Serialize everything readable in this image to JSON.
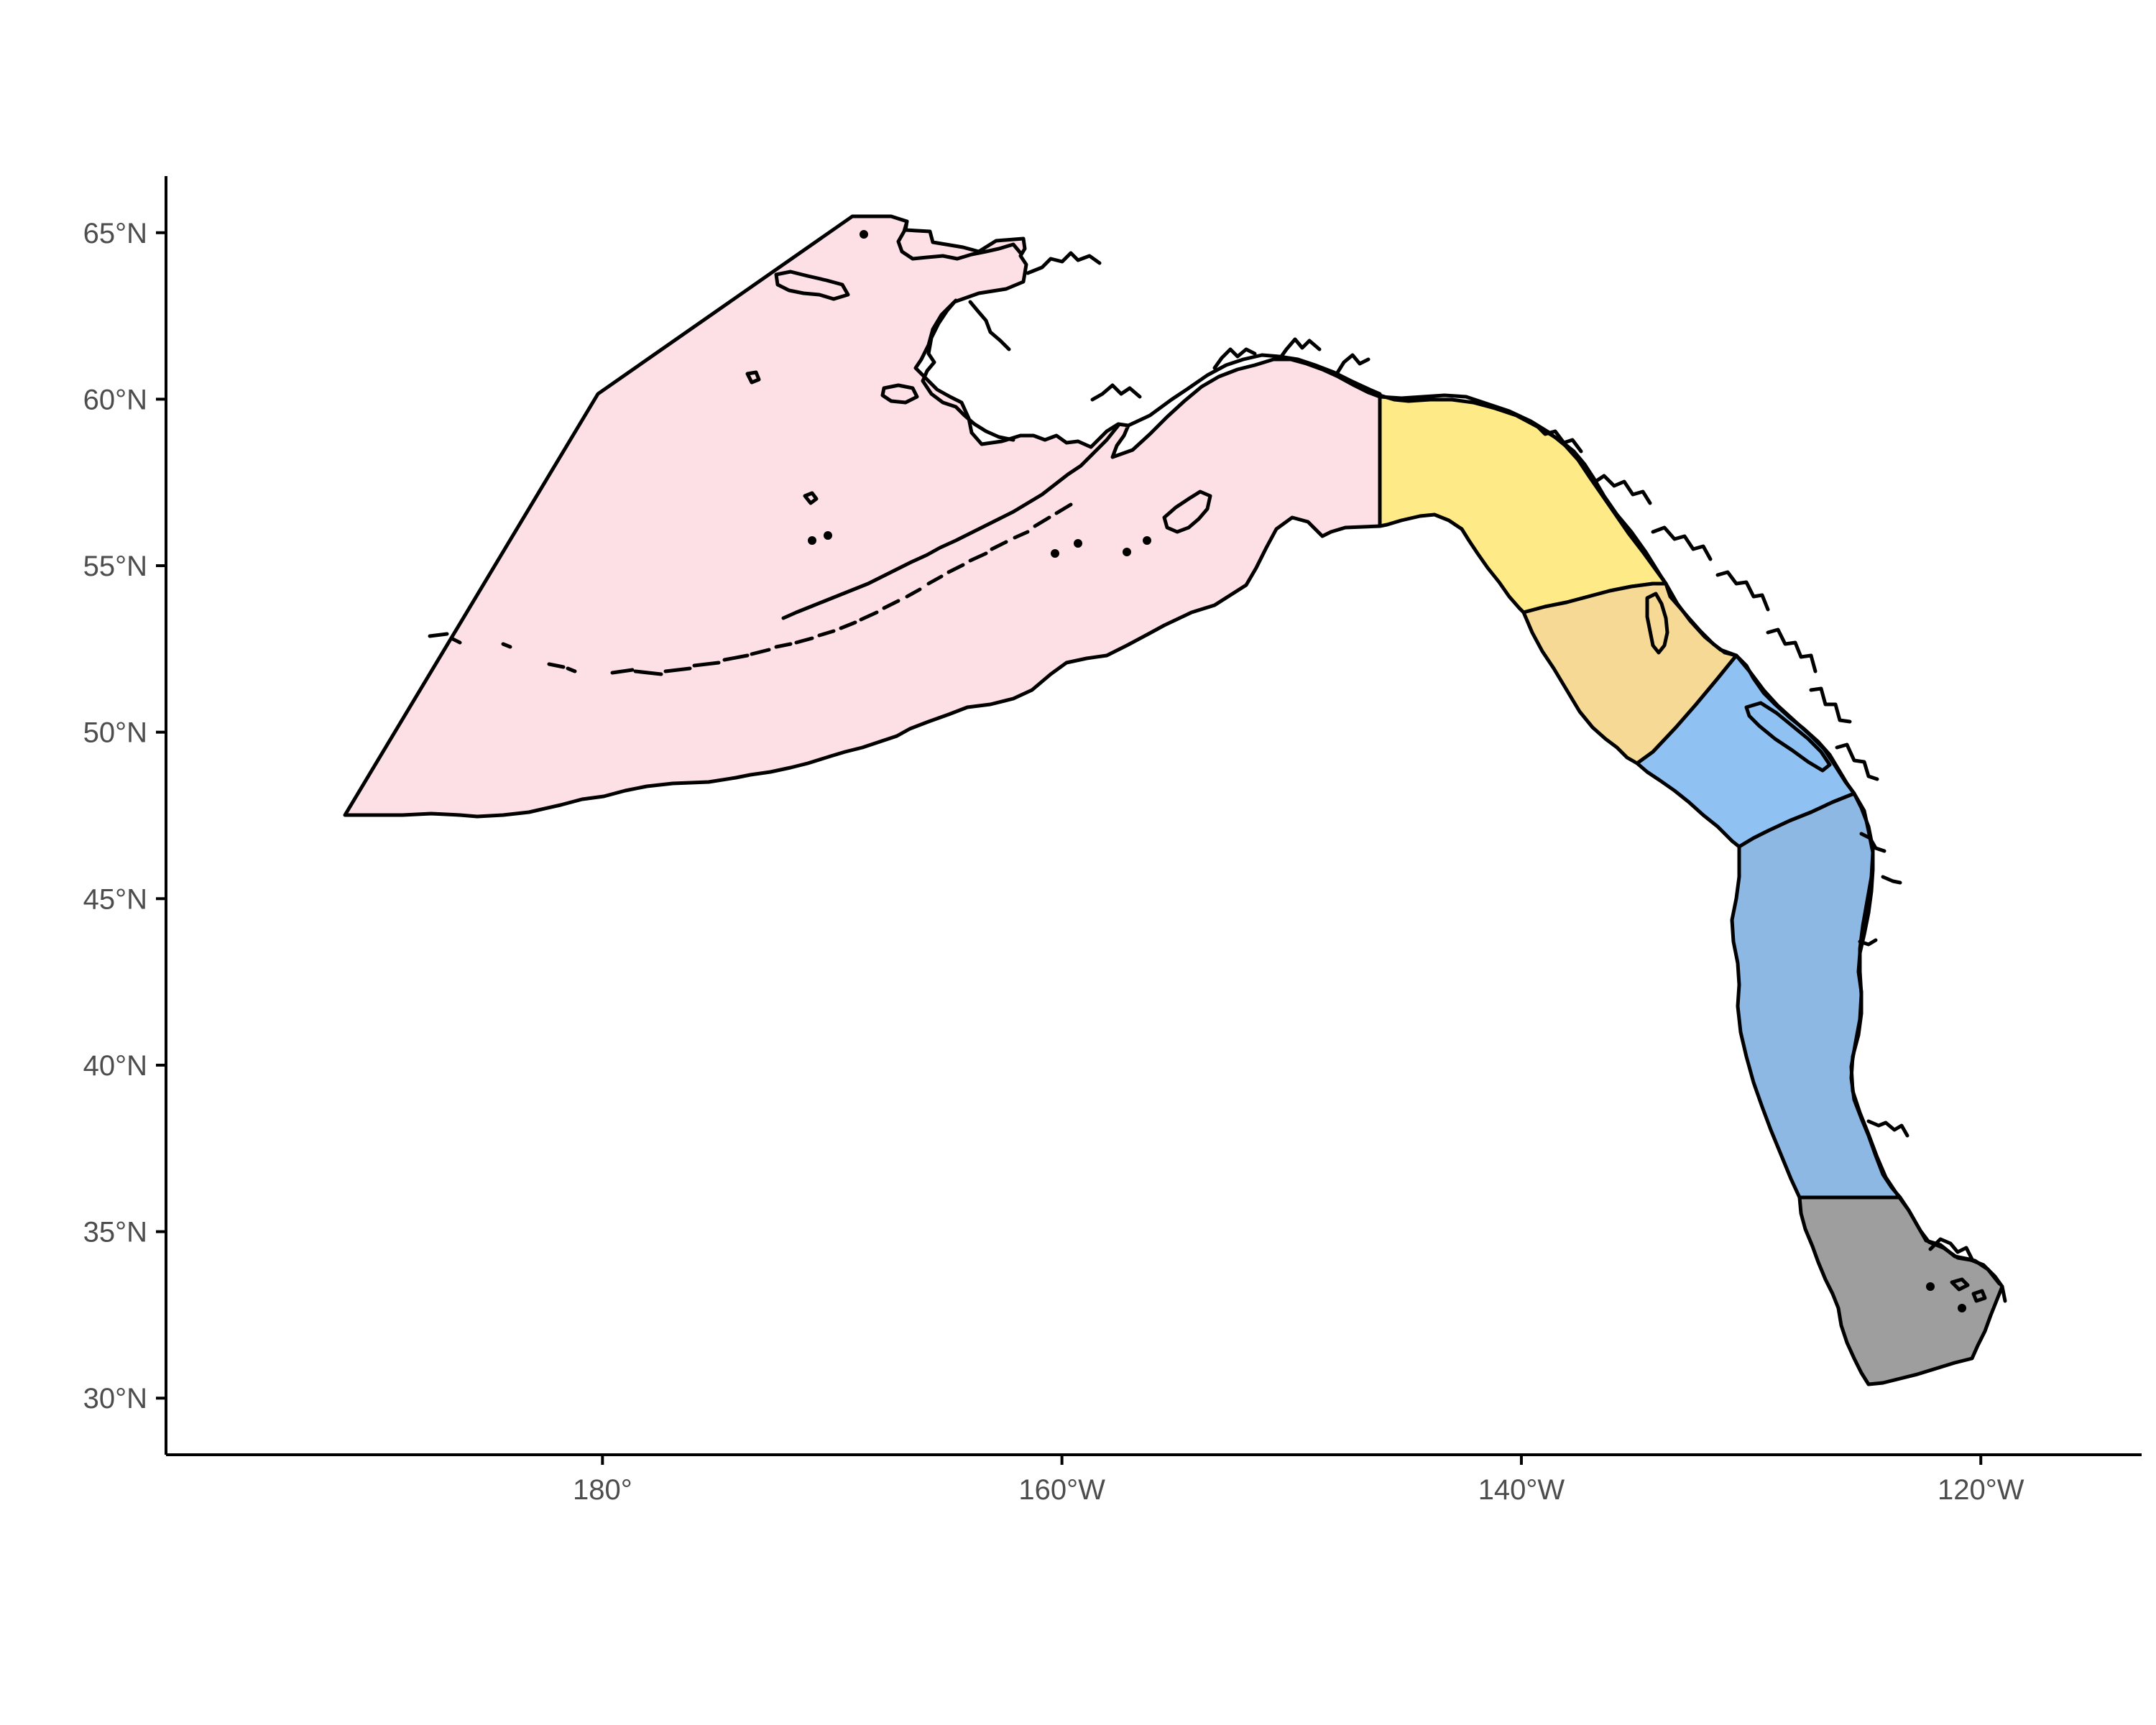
{
  "map": {
    "title": "",
    "xlabel": "",
    "ylabel": "",
    "xlim": [
      -199,
      -113
    ],
    "ylim": [
      28.3,
      66.7
    ],
    "x_ticks": [
      {
        "value": -180,
        "label": "180°"
      },
      {
        "value": -160,
        "label": "160°W"
      },
      {
        "value": -140,
        "label": "140°W"
      },
      {
        "value": -120,
        "label": "120°W"
      }
    ],
    "y_ticks": [
      {
        "value": 30,
        "label": "30°N"
      },
      {
        "value": 35,
        "label": "35°N"
      },
      {
        "value": 40,
        "label": "40°N"
      },
      {
        "value": 45,
        "label": "45°N"
      },
      {
        "value": 50,
        "label": "50°N"
      },
      {
        "value": 55,
        "label": "55°N"
      },
      {
        "value": 60,
        "label": "60°N"
      },
      {
        "value": 65,
        "label": "65°N"
      }
    ],
    "legend": "none",
    "grid": false,
    "regions": [
      {
        "id": "alaska",
        "color": "#fde0e6"
      },
      {
        "id": "gulf-southeast",
        "color": "#feea87"
      },
      {
        "id": "northern-bc",
        "color": "#f5d994"
      },
      {
        "id": "southern-bc",
        "color": "#8fc1f2"
      },
      {
        "id": "california-current",
        "color": "#8db8e3"
      },
      {
        "id": "southern-california",
        "color": "#9e9e9e"
      }
    ]
  }
}
